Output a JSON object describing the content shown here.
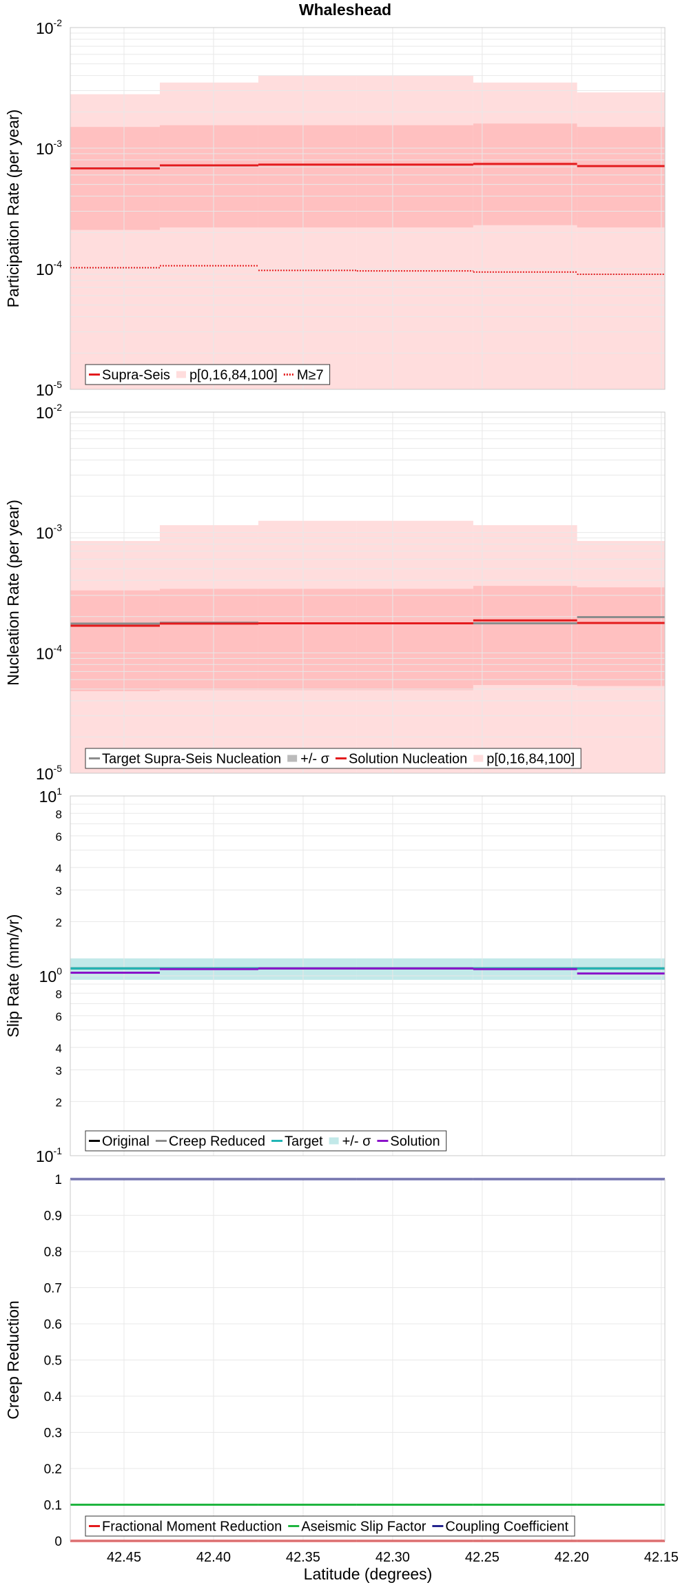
{
  "figure": {
    "title": "Whaleshead",
    "xlabel": "Latitude (degrees)",
    "x_ticks": [
      42.45,
      42.4,
      42.35,
      42.3,
      42.25,
      42.2,
      42.15
    ],
    "x_tick_labels": [
      "42.45",
      "42.40",
      "42.35",
      "42.30",
      "42.25",
      "42.20",
      "42.15"
    ],
    "xlim": [
      42.48,
      42.148
    ],
    "x_axis_reversed": true,
    "grid": true
  },
  "colors": {
    "red": "#e31a1c",
    "pink_outer": "#ffdddd",
    "pink_inner": "#ffc0c0",
    "grey_band": "#bbbbbb",
    "grey_line": "#8c8c8c",
    "teal": "#21b5b5",
    "teal_band": "#c2e9e9",
    "purple": "#8a12c9",
    "green": "#1fb53f",
    "navy": "#23238e",
    "black": "#000000",
    "grid": "#e8e8e8"
  },
  "chart_data": [
    {
      "type": "line",
      "panel": "participation",
      "ylabel": "Participation Rate (per year)",
      "yscale": "log",
      "ylim": [
        1e-05,
        0.01
      ],
      "y_tick_labels": [
        {
          "base": "10",
          "exp": "-5",
          "v": 1e-05
        },
        {
          "base": "10",
          "exp": "-4",
          "v": 0.0001
        },
        {
          "base": "10",
          "exp": "-3",
          "v": 0.001
        },
        {
          "base": "10",
          "exp": "-2",
          "v": 0.01
        }
      ],
      "segment_edges": [
        42.48,
        42.43,
        42.375,
        42.32,
        42.255,
        42.197,
        42.148
      ],
      "series": [
        {
          "name": "Supra-Seis",
          "style": "solid",
          "color": "#e31a1c",
          "values": [
            0.00068,
            0.00072,
            0.00073,
            0.00073,
            0.00074,
            0.00071
          ]
        },
        {
          "name": "p[0,16,84,100]",
          "style": "band",
          "outer_low": [
            1e-05,
            1e-05,
            1e-05,
            1e-05,
            1e-05,
            1e-05
          ],
          "outer_high": [
            0.0028,
            0.0035,
            0.004,
            0.004,
            0.0035,
            0.0029
          ],
          "inner_low": [
            0.00021,
            0.00022,
            0.00022,
            0.00022,
            0.00023,
            0.00022
          ],
          "inner_high": [
            0.0015,
            0.00155,
            0.00155,
            0.00155,
            0.0016,
            0.0015
          ]
        },
        {
          "name": "M≥7",
          "style": "dotted",
          "color": "#e31a1c",
          "values": [
            0.000102,
            0.000106,
            9.7e-05,
            9.6e-05,
            9.4e-05,
            9e-05
          ]
        }
      ],
      "legend": [
        "Supra-Seis",
        "p[0,16,84,100]",
        "M≥7"
      ],
      "legend_position": "bottom-left"
    },
    {
      "type": "line",
      "panel": "nucleation",
      "ylabel": "Nucleation Rate (per year)",
      "yscale": "log",
      "ylim": [
        1e-05,
        0.01
      ],
      "y_tick_labels": [
        {
          "base": "10",
          "exp": "-5",
          "v": 1e-05
        },
        {
          "base": "10",
          "exp": "-4",
          "v": 0.0001
        },
        {
          "base": "10",
          "exp": "-3",
          "v": 0.001
        },
        {
          "base": "10",
          "exp": "-2",
          "v": 0.01
        }
      ],
      "segment_edges": [
        42.48,
        42.43,
        42.375,
        42.32,
        42.255,
        42.197,
        42.148
      ],
      "series": [
        {
          "name": "Target Supra-Seis Nucleation",
          "style": "solid",
          "color": "#8c8c8c",
          "values": [
            0.000175,
            0.000178,
            0.000176,
            0.000176,
            0.000176,
            0.000198
          ]
        },
        {
          "name": "+/- σ",
          "style": "band",
          "low": [
            0.000148,
            0.000152,
            0.000151,
            0.000151,
            0.000144,
            0.000168
          ],
          "high": [
            0.000205,
            0.000206,
            0.000203,
            0.000203,
            0.000205,
            0.000232
          ]
        },
        {
          "name": "Solution Nucleation",
          "style": "solid",
          "color": "#e31a1c",
          "values": [
            0.000168,
            0.000175,
            0.000176,
            0.000176,
            0.000186,
            0.000177
          ]
        },
        {
          "name": "p[0,16,84,100]",
          "style": "band",
          "outer_low": [
            1e-05,
            1e-05,
            1e-05,
            1e-05,
            1e-05,
            1e-05
          ],
          "outer_high": [
            0.00085,
            0.00115,
            0.00125,
            0.00125,
            0.00115,
            0.00085
          ],
          "inner_low": [
            4.8e-05,
            4.9e-05,
            4.9e-05,
            4.9e-05,
            5.4e-05,
            5.3e-05
          ],
          "inner_high": [
            0.00033,
            0.00034,
            0.00034,
            0.00034,
            0.00036,
            0.00035
          ]
        }
      ],
      "legend": [
        "Target Supra-Seis Nucleation",
        "+/- σ",
        "Solution Nucleation",
        "p[0,16,84,100]"
      ],
      "legend_position": "bottom-left"
    },
    {
      "type": "line",
      "panel": "slip",
      "ylabel": "Slip Rate (mm/yr)",
      "yscale": "log",
      "ylim": [
        0.1,
        10
      ],
      "y_tick_labels": [
        {
          "base": "10",
          "exp": "-1",
          "v": 0.1
        },
        {
          "base": "10",
          "exp": "0",
          "v": 1
        },
        {
          "base": "10",
          "exp": "1",
          "v": 10
        }
      ],
      "y_minor_labels": [
        {
          "label": "2",
          "v": 0.2
        },
        {
          "label": "3",
          "v": 0.3
        },
        {
          "label": "4",
          "v": 0.4
        },
        {
          "label": "6",
          "v": 0.6
        },
        {
          "label": "8",
          "v": 0.8
        },
        {
          "label": "2",
          "v": 2
        },
        {
          "label": "3",
          "v": 3
        },
        {
          "label": "4",
          "v": 4
        },
        {
          "label": "6",
          "v": 6
        },
        {
          "label": "8",
          "v": 8
        }
      ],
      "segment_edges": [
        42.48,
        42.43,
        42.375,
        42.32,
        42.255,
        42.197,
        42.148
      ],
      "series": [
        {
          "name": "Original",
          "style": "solid",
          "color": "#000000",
          "values": [
            1.1,
            1.1,
            1.1,
            1.1,
            1.1,
            1.1
          ]
        },
        {
          "name": "Creep Reduced",
          "style": "solid",
          "color": "#8c8c8c",
          "values": [
            1.1,
            1.1,
            1.1,
            1.1,
            1.1,
            1.1
          ]
        },
        {
          "name": "Target",
          "style": "solid",
          "color": "#21b5b5",
          "values": [
            1.1,
            1.1,
            1.1,
            1.1,
            1.1,
            1.1
          ]
        },
        {
          "name": "+/- σ",
          "style": "band",
          "low": [
            0.95,
            0.95,
            0.95,
            0.95,
            0.95,
            0.95
          ],
          "high": [
            1.25,
            1.25,
            1.25,
            1.25,
            1.25,
            1.25
          ]
        },
        {
          "name": "Solution",
          "style": "solid",
          "color": "#8a12c9",
          "values": [
            1.04,
            1.09,
            1.1,
            1.1,
            1.09,
            1.03
          ]
        }
      ],
      "legend": [
        "Original",
        "Creep Reduced",
        "Target",
        "+/- σ",
        "Solution"
      ],
      "legend_position": "bottom-left"
    },
    {
      "type": "line",
      "panel": "creep",
      "ylabel": "Creep Reduction",
      "yscale": "linear",
      "ylim": [
        0,
        1
      ],
      "y_ticks": [
        0,
        0.1,
        0.2,
        0.3,
        0.4,
        0.5,
        0.6,
        0.7,
        0.8,
        0.9,
        1
      ],
      "y_tick_labels": [
        "0",
        "0.1",
        "0.2",
        "0.3",
        "0.4",
        "0.5",
        "0.6",
        "0.7",
        "0.8",
        "0.9",
        "1"
      ],
      "segment_edges": [
        42.48,
        42.43,
        42.375,
        42.32,
        42.255,
        42.197,
        42.148
      ],
      "series": [
        {
          "name": "Fractional Moment Reduction",
          "style": "solid",
          "color": "#e31a1c",
          "values": [
            0,
            0,
            0,
            0,
            0,
            0
          ]
        },
        {
          "name": "Aseismic Slip Factor",
          "style": "solid",
          "color": "#1fb53f",
          "values": [
            0.1,
            0.1,
            0.1,
            0.1,
            0.1,
            0.1
          ]
        },
        {
          "name": "Coupling Coefficient",
          "style": "solid",
          "color": "#23238e",
          "values": [
            1,
            1,
            1,
            1,
            1,
            1
          ]
        }
      ],
      "legend": [
        "Fractional Moment Reduction",
        "Aseismic Slip Factor",
        "Coupling Coefficient"
      ],
      "legend_position": "bottom-left"
    }
  ]
}
